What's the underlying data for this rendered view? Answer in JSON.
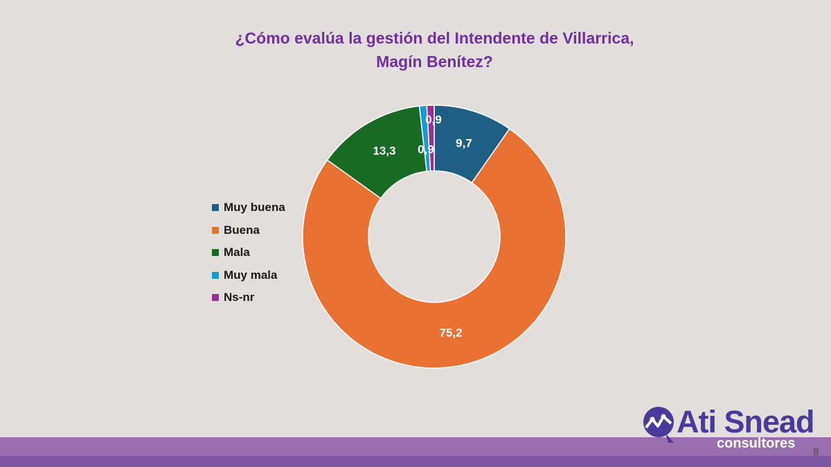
{
  "title_line1": "¿Cómo evalúa la gestión del Intendente de Villarrica,",
  "title_line2": "Magín Benítez?",
  "chart_data": {
    "type": "pie",
    "title": "¿Cómo evalúa la gestión del Intendente de Villarrica, Magín Benítez?",
    "donut": true,
    "legend": "left",
    "series": [
      {
        "name": "Muy buena",
        "value": 9.7,
        "label": "9,7",
        "color": "#1f5f85"
      },
      {
        "name": "Buena",
        "value": 75.2,
        "label": "75,2",
        "color": "#e97132"
      },
      {
        "name": "Mala",
        "value": 13.3,
        "label": "13,3",
        "color": "#196b24"
      },
      {
        "name": "Muy mala",
        "value": 0.9,
        "label": "0,9",
        "color": "#0f9ed5"
      },
      {
        "name": "Ns-nr",
        "value": 0.9,
        "label": "0,9",
        "color": "#a02b93"
      }
    ]
  },
  "logo": {
    "name": "Ati Snead",
    "sub": "consultores"
  },
  "page_number": "8"
}
